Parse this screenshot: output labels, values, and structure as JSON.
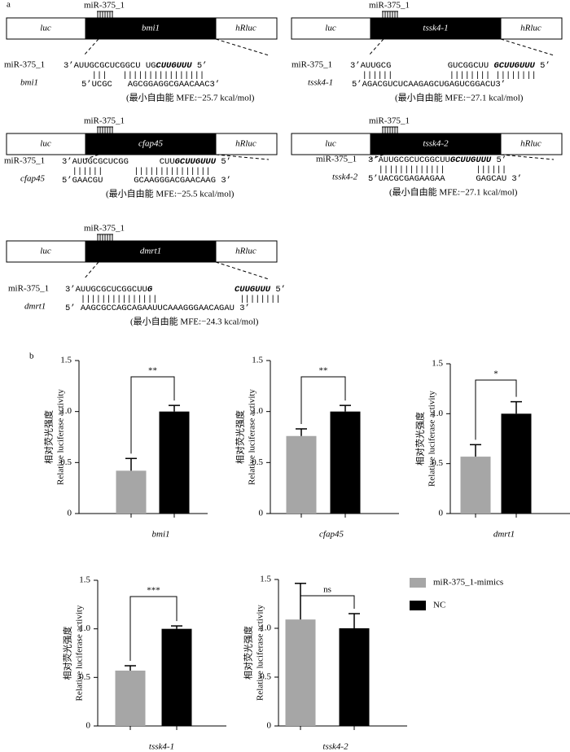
{
  "panel_labels": {
    "a": "a",
    "b": "b"
  },
  "constructs": [
    {
      "mirna_label": "miR-375_1",
      "luc": "luc",
      "gene": "bmi1",
      "hrluc": "hRluc",
      "mirna_name": "miR-375_1",
      "mirna_seq": [
        {
          "text": "3’AUUGCGCUCGGCU UG"
        },
        {
          "text": "CUUGUUU",
          "bold": true
        },
        {
          "text": " 5’"
        }
      ],
      "bonds": "  |||   ||||||||||||||||",
      "target_name": "bmi1",
      "target_seq": "5’UCGC   AGCGGAGGCGAACAAC3’",
      "mfe": "(最小自由能 MFE:−25.7 kcal/mol)"
    },
    {
      "mirna_label": "miR-375_1",
      "luc": "luc",
      "gene": "tssk4-1",
      "hrluc": "hRluc",
      "mirna_name": "miR-375_1",
      "mirna_seq": [
        {
          "text": "3’AUUGCG           GUCGGCUU "
        },
        {
          "text": "GCUUGUUU",
          "bold": true
        },
        {
          "text": " 5’"
        }
      ],
      "bonds": "  ||||||           |||||||| ||||||||",
      "target_name": "tssk4-1",
      "target_seq": "5’AGACGUCUCAAGAGCUGAGUCGGACU3’",
      "mfe": "(最小自由能 MFE:−27.1 kcal/mol)"
    },
    {
      "mirna_label": "miR-375_1",
      "luc": "luc",
      "gene": "cfap45",
      "hrluc": "hRluc",
      "mirna_name": "miR-375_1",
      "mirna_seq": [
        {
          "text": "3’AUUGCGCUCGG      CUU"
        },
        {
          "text": "GCUUGUUU",
          "bold": true
        },
        {
          "text": " 5’"
        }
      ],
      "bonds": "  ||||||      |||||||||||||||",
      "target_name": "cfap45",
      "target_seq": "5’GAACGU      GCAAGGGACGAACAAG 3’",
      "mfe": "(最小自由能 MFE:−25.5 kcal/mol)"
    },
    {
      "mirna_label": "miR-375_1",
      "luc": "luc",
      "gene": "tssk4-2",
      "hrluc": "hRluc",
      "mirna_name": "miR-375_1",
      "mirna_seq": [
        {
          "text": "3’AUUGCGCUCGGCUU"
        },
        {
          "text": "GCUUGUUU",
          "bold": true
        },
        {
          "text": " 5’"
        }
      ],
      "bonds": "  |||||||||||||      ||||||",
      "target_name": "tssk4-2",
      "target_seq": "5’UACGCGAGAAGAA      GAGCAU 3’",
      "mfe": "(最小自由能 MFE:−27.1 kcal/mol)"
    },
    {
      "mirna_label": "miR-375_1",
      "luc": "luc",
      "gene": "dmrt1",
      "hrluc": "hRluc",
      "mirna_name": "miR-375_1",
      "mirna_seq": [
        {
          "text": "3’AUUGCGCUCGGCUU"
        },
        {
          "text": "G",
          "bold": true
        },
        {
          "text": "                "
        },
        {
          "text": "CUUGUUU",
          "bold": true
        },
        {
          "text": " 5’"
        }
      ],
      "bonds": "   |||||||||||||||                ||||||||",
      "target_name": "dmrt1",
      "target_seq": "5’ AAGCGCCAGCAGAAUUCAAAGGGAACAGAU 3’",
      "mfe": "(最小自由能 MFE:−24.3 kcal/mol)"
    }
  ],
  "chart_data": [
    {
      "type": "bar",
      "x_label": "bmi1",
      "y_label_cn": "相对荧光强度",
      "y_label": "Relative luciferase activity",
      "ylim": [
        0,
        1.5
      ],
      "yticks": [
        0,
        0.5,
        {
          "value": 1,
          "label": "1.0"
        },
        1.5
      ],
      "significance": "**",
      "series": [
        {
          "name": "miR-375_1-mimics",
          "color": "#a6a6a6",
          "values": [
            0.42
          ],
          "errors": [
            0.12
          ]
        },
        {
          "name": "NC",
          "color": "#000000",
          "values": [
            1.0
          ],
          "errors": [
            0.06
          ]
        }
      ]
    },
    {
      "type": "bar",
      "x_label": "cfap45",
      "y_label_cn": "相对荧光强度",
      "y_label": "Relative luciferase activity",
      "ylim": [
        0,
        1.5
      ],
      "yticks": [
        0,
        0.5,
        {
          "value": 1,
          "label": "1.0"
        },
        1.5
      ],
      "significance": "**",
      "series": [
        {
          "name": "miR-375_1-mimics",
          "color": "#a6a6a6",
          "values": [
            0.76
          ],
          "errors": [
            0.07
          ]
        },
        {
          "name": "NC",
          "color": "#000000",
          "values": [
            1.0
          ],
          "errors": [
            0.06
          ]
        }
      ]
    },
    {
      "type": "bar",
      "x_label": "dmrt1",
      "y_label_cn": "相对荧光强度",
      "y_label": "Relative luciferase activity",
      "ylim": [
        0,
        1.5
      ],
      "yticks": [
        0,
        0.5,
        {
          "value": 1,
          "label": "1.0"
        },
        1.5
      ],
      "significance": "*",
      "series": [
        {
          "name": "miR-375_1-mimics",
          "color": "#a6a6a6",
          "values": [
            0.57
          ],
          "errors": [
            0.12
          ]
        },
        {
          "name": "NC",
          "color": "#000000",
          "values": [
            1.0
          ],
          "errors": [
            0.12
          ]
        }
      ]
    },
    {
      "type": "bar",
      "x_label": "tssk4-1",
      "y_label_cn": "相对荧光强度",
      "y_label": "Relative luciferase activity",
      "ylim": [
        0,
        1.5
      ],
      "yticks": [
        0,
        0.5,
        {
          "value": 1,
          "label": "1.0"
        },
        1.5
      ],
      "significance": "***",
      "series": [
        {
          "name": "miR-375_1-mimics",
          "color": "#a6a6a6",
          "values": [
            0.57
          ],
          "errors": [
            0.05
          ]
        },
        {
          "name": "NC",
          "color": "#000000",
          "values": [
            1.0
          ],
          "errors": [
            0.03
          ]
        }
      ]
    },
    {
      "type": "bar",
      "x_label": "tssk4-2",
      "y_label_cn": "相对荧光强度",
      "y_label": "Relative luciferase activity",
      "ylim": [
        0,
        1.5
      ],
      "yticks": [
        0,
        0.5,
        {
          "value": 1,
          "label": "1.0"
        },
        1.5
      ],
      "significance": "ns",
      "series": [
        {
          "name": "miR-375_1-mimics",
          "color": "#a6a6a6",
          "values": [
            1.09
          ],
          "errors": [
            0.37
          ]
        },
        {
          "name": "NC",
          "color": "#000000",
          "values": [
            1.0
          ],
          "errors": [
            0.15
          ]
        }
      ]
    }
  ]
}
